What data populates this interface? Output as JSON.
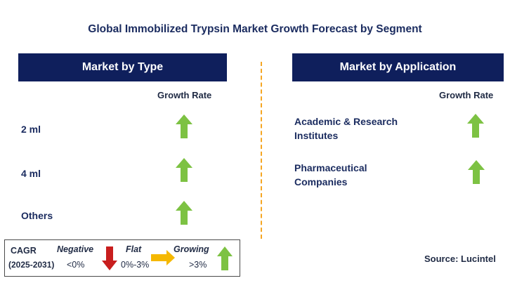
{
  "title": "Global Immobilized Trypsin Market Growth Forecast by Segment",
  "left_panel": {
    "header": "Market by Type",
    "rate_label": "Growth Rate",
    "rows": [
      {
        "label": "2 ml",
        "trend": "growing"
      },
      {
        "label": "4 ml",
        "trend": "growing"
      },
      {
        "label": "Others",
        "trend": "growing"
      }
    ]
  },
  "right_panel": {
    "header": "Market by Application",
    "rate_label": "Growth Rate",
    "rows": [
      {
        "label_line1": "Academic & Research",
        "label_line2": "Institutes",
        "trend": "growing"
      },
      {
        "label_line1": "Pharmaceutical",
        "label_line2": "Companies",
        "trend": "growing"
      }
    ]
  },
  "legend": {
    "cagr_label": "CAGR",
    "period": "(2025-2031)",
    "negative_label": "Negative",
    "negative_range": "<0%",
    "flat_label": "Flat",
    "flat_range": "0%-3%",
    "growing_label": "Growing",
    "growing_range": ">3%"
  },
  "source": "Source: Lucintel",
  "colors": {
    "header_bg": "#0f1f5c",
    "up_arrow": "#7dc243",
    "down_arrow": "#c81e1e",
    "flat_arrow": "#f5b800",
    "divider": "#f5a623"
  }
}
